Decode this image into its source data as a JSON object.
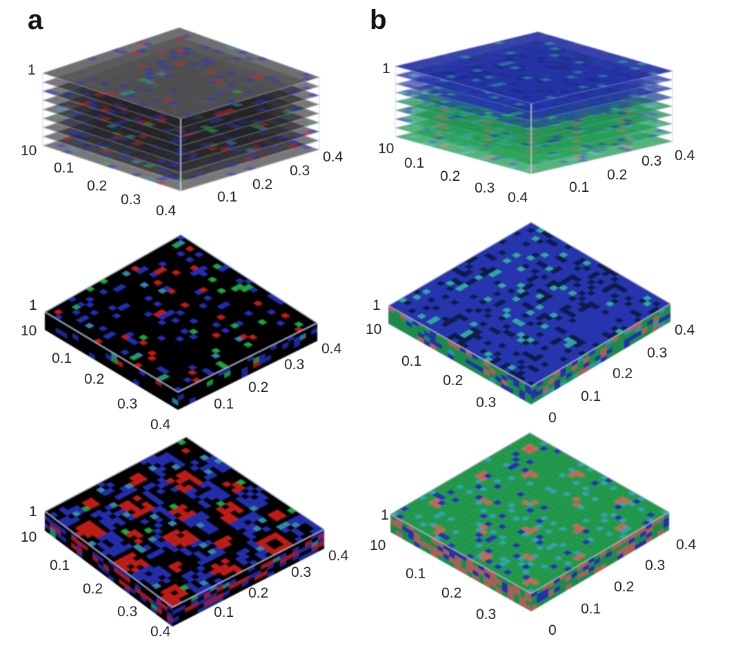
{
  "panels": [
    {
      "label": "a",
      "background": "#000000",
      "palette": {
        "red": "#e0201c",
        "green": "#1fc24a",
        "blue": "#2a36c8",
        "cyan": "#3aa0c8"
      },
      "views": [
        {
          "kind": "stacked-slices",
          "layer_labels": [
            "1",
            "10"
          ],
          "left_ticks": [
            "0.1",
            "0.2",
            "0.3",
            "0.4"
          ],
          "right_ticks": [
            "0.1",
            "0.2",
            "0.3",
            "0.4"
          ],
          "pattern": "sparse"
        },
        {
          "kind": "slab",
          "layer_labels": [
            "1",
            "10"
          ],
          "left_ticks": [
            "0.1",
            "0.2",
            "0.3",
            "0.4"
          ],
          "right_ticks": [
            "0.1",
            "0.2",
            "0.3",
            "0.4"
          ],
          "pattern": "sparse"
        },
        {
          "kind": "slab",
          "layer_labels": [
            "1",
            "10"
          ],
          "left_ticks": [
            "0.1",
            "0.2",
            "0.3",
            "0.4"
          ],
          "right_ticks": [
            "0.1",
            "0.2",
            "0.3",
            "0.4"
          ],
          "pattern": "checker"
        }
      ]
    },
    {
      "label": "b",
      "background": "#0a1a50",
      "palette": {
        "red": "#e07a5a",
        "green": "#25b24a",
        "blue": "#2b3cc0",
        "cyan": "#3ac0b0"
      },
      "views": [
        {
          "kind": "stacked-slices",
          "layer_labels": [
            "1",
            "10"
          ],
          "left_ticks": [
            "0.1",
            "0.2",
            "0.3",
            "0.4"
          ],
          "right_ticks": [
            "0.1",
            "0.2",
            "0.3",
            "0.4"
          ],
          "pattern": "blue-top"
        },
        {
          "kind": "slab",
          "layer_labels": [
            "1",
            "10"
          ],
          "left_ticks": [
            "0.1",
            "0.2",
            "0.3"
          ],
          "right_ticks": [
            "0",
            "0.1",
            "0.2",
            "0.3",
            "0.4"
          ],
          "pattern": "blue-top"
        },
        {
          "kind": "slab",
          "layer_labels": [
            "1",
            "10"
          ],
          "left_ticks": [
            "0.1",
            "0.2",
            "0.3"
          ],
          "right_ticks": [
            "0",
            "0.1",
            "0.2",
            "0.3",
            "0.4"
          ],
          "pattern": "green-top"
        }
      ]
    }
  ]
}
